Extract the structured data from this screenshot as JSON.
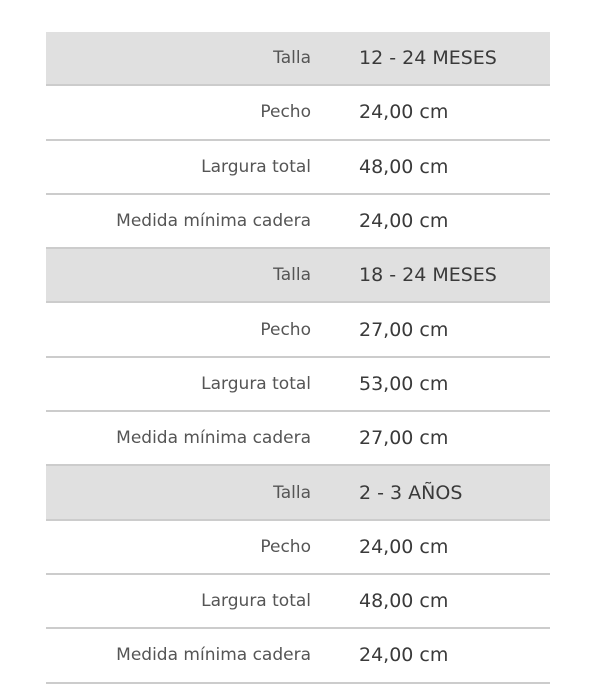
{
  "colors": {
    "header_bg": "#e0e0e0",
    "divider": "#cccccc"
  },
  "groups": [
    {
      "size_label": "Talla",
      "size": "12 - 24 MESES",
      "rows": [
        {
          "label": "Pecho",
          "value": "24,00 cm"
        },
        {
          "label": "Largura total",
          "value": "48,00 cm"
        },
        {
          "label": "Medida mínima cadera",
          "value": "24,00 cm"
        }
      ]
    },
    {
      "size_label": "Talla",
      "size": "18 - 24 MESES",
      "rows": [
        {
          "label": "Pecho",
          "value": "27,00 cm"
        },
        {
          "label": "Largura total",
          "value": "53,00 cm"
        },
        {
          "label": "Medida mínima cadera",
          "value": "27,00 cm"
        }
      ]
    },
    {
      "size_label": "Talla",
      "size": "2 - 3 AÑOS",
      "rows": [
        {
          "label": "Pecho",
          "value": "24,00 cm"
        },
        {
          "label": "Largura total",
          "value": "48,00 cm"
        },
        {
          "label": "Medida mínima cadera",
          "value": "24,00 cm"
        }
      ]
    }
  ]
}
